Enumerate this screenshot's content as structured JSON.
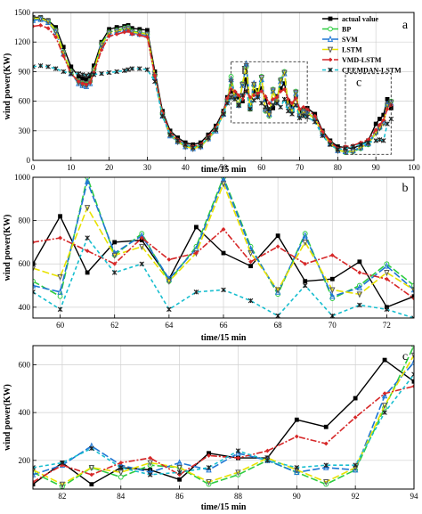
{
  "chart_data": [
    {
      "type": "line",
      "panel_label": "a",
      "xlabel": "time/15 min",
      "ylabel": "wind power(KW)",
      "xlim": [
        0,
        100
      ],
      "ylim": [
        0,
        1500
      ],
      "xticks": [
        0,
        10,
        20,
        30,
        40,
        50,
        60,
        70,
        80,
        90,
        100
      ],
      "yticks": [
        0,
        300,
        600,
        900,
        1200,
        1500
      ],
      "grid": true,
      "legend_position": "top-right",
      "annotations": [
        {
          "text": "b",
          "x_range": [
            52,
            72
          ],
          "y_range": [
            380,
            1000
          ]
        },
        {
          "text": "c",
          "x_range": [
            82,
            94
          ],
          "y_range": [
            60,
            880
          ]
        }
      ],
      "x": [
        0,
        2,
        4,
        6,
        8,
        10,
        12,
        13,
        14,
        15,
        16,
        18,
        20,
        22,
        24,
        25,
        26,
        28,
        30,
        32,
        34,
        36,
        38,
        40,
        42,
        44,
        46,
        48,
        50,
        51,
        52,
        53,
        54,
        55,
        56,
        57,
        58,
        59,
        60,
        61,
        62,
        63,
        64,
        65,
        66,
        67,
        68,
        69,
        70,
        71,
        72,
        74,
        76,
        78,
        80,
        82,
        84,
        86,
        88,
        90,
        91,
        92,
        93,
        94
      ],
      "series": [
        {
          "name": "actual value",
          "color": "#000000",
          "values": [
            1450,
            1450,
            1420,
            1350,
            1150,
            950,
            850,
            830,
            820,
            850,
            960,
            1200,
            1330,
            1350,
            1360,
            1370,
            1340,
            1330,
            1320,
            900,
            500,
            300,
            230,
            180,
            160,
            180,
            260,
            350,
            500,
            640,
            700,
            680,
            640,
            600,
            820,
            560,
            700,
            710,
            730,
            620,
            500,
            530,
            650,
            730,
            780,
            600,
            540,
            640,
            500,
            520,
            530,
            470,
            300,
            200,
            140,
            130,
            120,
            160,
            200,
            370,
            420,
            460,
            620,
            530
          ]
        },
        {
          "name": "BP",
          "color": "#2ecc40",
          "values": [
            1430,
            1440,
            1410,
            1320,
            1100,
            900,
            800,
            780,
            770,
            800,
            920,
            1180,
            1300,
            1320,
            1340,
            1350,
            1310,
            1300,
            1280,
            860,
            470,
            270,
            200,
            150,
            130,
            150,
            230,
            320,
            480,
            600,
            850,
            650,
            560,
            780,
            950,
            520,
            760,
            680,
            850,
            500,
            450,
            720,
            600,
            820,
            900,
            550,
            500,
            700,
            450,
            500,
            490,
            420,
            280,
            180,
            110,
            80,
            90,
            120,
            160,
            280,
            330,
            380,
            560,
            600
          ]
        },
        {
          "name": "SVM",
          "color": "#1f77d4",
          "values": [
            1420,
            1430,
            1400,
            1300,
            1080,
            880,
            780,
            760,
            750,
            780,
            900,
            1160,
            1280,
            1300,
            1320,
            1330,
            1290,
            1280,
            1270,
            840,
            450,
            250,
            190,
            140,
            120,
            140,
            220,
            300,
            470,
            600,
            820,
            640,
            560,
            760,
            980,
            540,
            780,
            660,
            820,
            520,
            470,
            700,
            590,
            800,
            880,
            560,
            510,
            680,
            460,
            490,
            480,
            420,
            270,
            170,
            100,
            90,
            100,
            130,
            170,
            290,
            340,
            390,
            570,
            580
          ]
        },
        {
          "name": "LSTM",
          "color": "#e8e200",
          "values": [
            1440,
            1440,
            1410,
            1310,
            1090,
            890,
            790,
            770,
            760,
            790,
            910,
            1170,
            1290,
            1310,
            1330,
            1340,
            1300,
            1290,
            1280,
            850,
            460,
            260,
            190,
            140,
            120,
            140,
            220,
            310,
            470,
            600,
            800,
            640,
            560,
            770,
            960,
            530,
            770,
            670,
            840,
            510,
            460,
            710,
            590,
            810,
            890,
            550,
            500,
            690,
            450,
            490,
            480,
            420,
            270,
            170,
            100,
            90,
            90,
            130,
            170,
            280,
            330,
            380,
            560,
            590
          ]
        },
        {
          "name": "VMD-LSTM",
          "color": "#d62728",
          "values": [
            1360,
            1370,
            1340,
            1250,
            1060,
            880,
            800,
            780,
            770,
            790,
            890,
            1120,
            1260,
            1280,
            1300,
            1310,
            1280,
            1270,
            1250,
            860,
            480,
            280,
            210,
            160,
            140,
            160,
            240,
            330,
            490,
            630,
            720,
            700,
            660,
            620,
            700,
            640,
            660,
            680,
            700,
            650,
            580,
            620,
            640,
            700,
            720,
            620,
            580,
            630,
            520,
            540,
            520,
            450,
            290,
            190,
            120,
            140,
            150,
            180,
            210,
            310,
            360,
            410,
            520,
            560
          ]
        },
        {
          "name": "CEEMDAN-LSTM",
          "color": "#17becf",
          "values": [
            950,
            960,
            950,
            930,
            900,
            880,
            880,
            870,
            860,
            870,
            870,
            880,
            890,
            900,
            910,
            920,
            930,
            930,
            920,
            800,
            450,
            260,
            200,
            160,
            130,
            150,
            230,
            310,
            470,
            580,
            640,
            620,
            560,
            660,
            700,
            520,
            610,
            640,
            580,
            540,
            520,
            560,
            580,
            540,
            620,
            500,
            470,
            560,
            430,
            450,
            440,
            390,
            250,
            160,
            110,
            120,
            140,
            160,
            180,
            200,
            210,
            200,
            370,
            420
          ]
        }
      ]
    },
    {
      "type": "line",
      "panel_label": "b",
      "xlabel": "time/15 min",
      "ylabel": "wind power(KW)",
      "xlim": [
        59,
        73
      ],
      "ylim": [
        350,
        1000
      ],
      "xticks": [
        60,
        62,
        64,
        66,
        68,
        70,
        72
      ],
      "yticks": [
        400,
        600,
        800,
        1000
      ],
      "grid": true,
      "x": [
        59,
        60,
        61,
        62,
        63,
        64,
        65,
        66,
        67,
        68,
        69,
        70,
        71,
        72,
        73
      ],
      "series": [
        {
          "name": "actual value",
          "color": "#000000",
          "values": [
            600,
            820,
            560,
            700,
            710,
            530,
            770,
            650,
            590,
            730,
            520,
            530,
            610,
            400,
            450
          ]
        },
        {
          "name": "BP",
          "color": "#2ecc40",
          "values": [
            520,
            450,
            1000,
            640,
            740,
            520,
            680,
            1000,
            680,
            460,
            740,
            440,
            500,
            600,
            500
          ]
        },
        {
          "name": "SVM",
          "color": "#1f77d4",
          "values": [
            500,
            470,
            980,
            650,
            730,
            530,
            670,
            990,
            670,
            470,
            730,
            450,
            490,
            590,
            480
          ]
        },
        {
          "name": "LSTM",
          "color": "#e8e200",
          "values": [
            580,
            540,
            860,
            640,
            680,
            520,
            650,
            970,
            650,
            480,
            700,
            480,
            460,
            560,
            480
          ]
        },
        {
          "name": "VMD-LSTM",
          "color": "#d62728",
          "values": [
            700,
            720,
            660,
            600,
            720,
            620,
            650,
            760,
            610,
            680,
            600,
            640,
            560,
            530,
            440
          ]
        },
        {
          "name": "CEEMDAN-LSTM",
          "color": "#17becf",
          "values": [
            470,
            390,
            720,
            560,
            600,
            390,
            470,
            480,
            430,
            360,
            500,
            360,
            410,
            390,
            350
          ]
        }
      ]
    },
    {
      "type": "line",
      "panel_label": "c",
      "xlabel": "time/15 min",
      "ylabel": "wind power(KW)",
      "xlim": [
        81,
        94
      ],
      "ylim": [
        80,
        680
      ],
      "xticks": [
        82,
        84,
        86,
        88,
        90,
        92,
        94
      ],
      "yticks": [
        200,
        400,
        600
      ],
      "grid": true,
      "x": [
        81,
        82,
        83,
        84,
        85,
        86,
        87,
        88,
        89,
        90,
        91,
        92,
        93,
        94
      ],
      "series": [
        {
          "name": "actual value",
          "color": "#000000",
          "values": [
            100,
            190,
            100,
            170,
            160,
            120,
            230,
            210,
            210,
            370,
            340,
            460,
            620,
            530
          ]
        },
        {
          "name": "BP",
          "color": "#2ecc40",
          "values": [
            150,
            90,
            170,
            130,
            180,
            170,
            100,
            140,
            200,
            150,
            100,
            160,
            420,
            680
          ]
        },
        {
          "name": "SVM",
          "color": "#1f77d4",
          "values": [
            140,
            180,
            260,
            180,
            150,
            190,
            160,
            230,
            200,
            150,
            170,
            160,
            470,
            610
          ]
        },
        {
          "name": "LSTM",
          "color": "#e8e200",
          "values": [
            160,
            100,
            170,
            150,
            190,
            170,
            110,
            150,
            210,
            160,
            110,
            170,
            430,
            640
          ]
        },
        {
          "name": "VMD-LSTM",
          "color": "#d62728",
          "values": [
            110,
            180,
            140,
            190,
            210,
            140,
            220,
            210,
            240,
            300,
            270,
            380,
            480,
            510
          ]
        },
        {
          "name": "CEEMDAN-LSTM",
          "color": "#17becf",
          "values": [
            170,
            190,
            250,
            170,
            140,
            150,
            170,
            240,
            200,
            170,
            180,
            180,
            400,
            560
          ]
        }
      ]
    }
  ]
}
